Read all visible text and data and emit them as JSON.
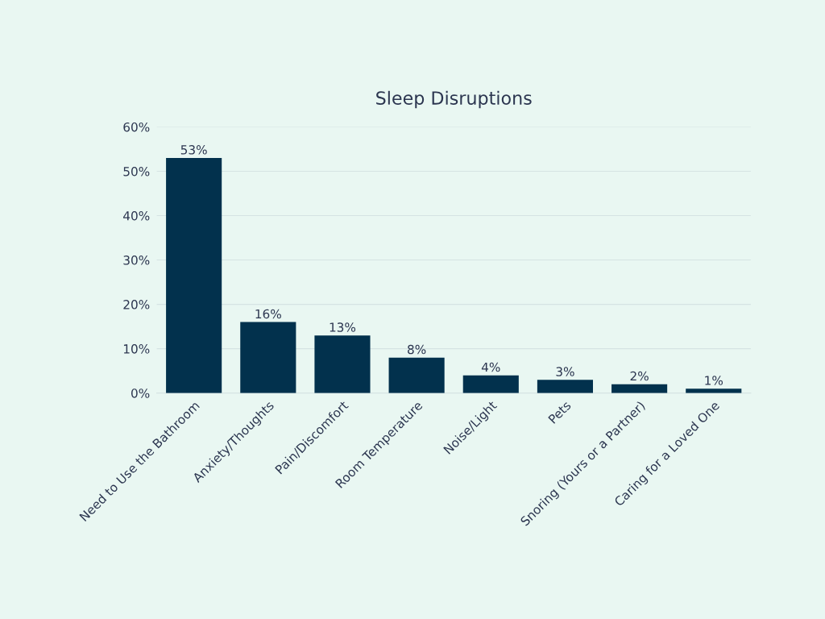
{
  "chart_data": {
    "type": "bar",
    "title": "Sleep Disruptions",
    "categories": [
      "Need to Use the Bathroom",
      "Anxiety/Thoughts",
      "Pain/Discomfort",
      "Room Temperature",
      "Noise/Light",
      "Pets",
      "Snoring (Yours or a Partner)",
      "Caring for a Loved One"
    ],
    "values": [
      53,
      16,
      13,
      8,
      4,
      3,
      2,
      1
    ],
    "value_labels": [
      "53%",
      "16%",
      "13%",
      "8%",
      "4%",
      "3%",
      "2%",
      "1%"
    ],
    "color": "#02314d",
    "ylim": [
      0,
      60
    ],
    "yticks": [
      {
        "value": 0,
        "label": "0%"
      },
      {
        "value": 10,
        "label": "10%"
      },
      {
        "value": 20,
        "label": "20%"
      },
      {
        "value": 30,
        "label": "30%"
      },
      {
        "value": 40,
        "label": "40%"
      },
      {
        "value": 50,
        "label": "50%"
      },
      {
        "value": 60,
        "label": "60%"
      }
    ],
    "grid": "y",
    "legend": false
  }
}
